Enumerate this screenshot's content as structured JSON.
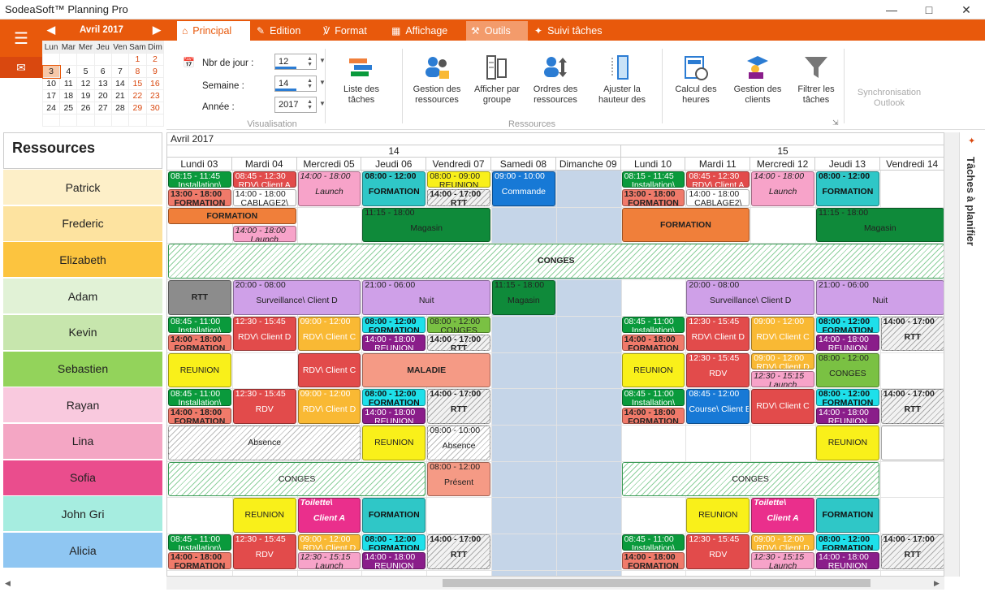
{
  "window": {
    "title": "SodeaSoft™ Planning Pro",
    "minimize_icon": "minimize-icon",
    "maximize_icon": "maximize-icon",
    "close_icon": "close-icon"
  },
  "tabs": [
    {
      "label": "Principal",
      "icon": "home-icon"
    },
    {
      "label": "Edition",
      "icon": "edit-icon"
    },
    {
      "label": "Format",
      "icon": "paint-roller-icon"
    },
    {
      "label": "Affichage",
      "icon": "grid-icon"
    },
    {
      "label": "Outils",
      "icon": "tool-icon"
    },
    {
      "label": "Suivi tâches",
      "icon": "pin-icon"
    }
  ],
  "mini_calendar": {
    "month": "Avril 2017",
    "days": [
      "Lun",
      "Mar",
      "Mer",
      "Jeu",
      "Ven",
      "Sam",
      "Dim"
    ],
    "weeks": [
      [
        "",
        "",
        "",
        "",
        "",
        "1",
        "2"
      ],
      [
        "3",
        "4",
        "5",
        "6",
        "7",
        "8",
        "9"
      ],
      [
        "10",
        "11",
        "12",
        "13",
        "14",
        "15",
        "16"
      ],
      [
        "17",
        "18",
        "19",
        "20",
        "21",
        "22",
        "23"
      ],
      [
        "24",
        "25",
        "26",
        "27",
        "28",
        "29",
        "30"
      ],
      [
        "",
        "",
        "",
        "",
        "",
        "",
        ""
      ]
    ],
    "today": "3"
  },
  "visualisation": {
    "nbjour_label": "Nbr de jour :",
    "nbjour_value": "12",
    "semaine_label": "Semaine :",
    "semaine_value": "14",
    "annee_label": "Année :",
    "annee_value": "2017",
    "caption": "Visualisation"
  },
  "ribbon_buttons": {
    "liste": "Liste des tâches",
    "gestion_res": "Gestion des ressources",
    "afficher": "Afficher par groupe",
    "ordres": "Ordres des ressources",
    "ajuster": "Ajuster la hauteur des",
    "ressources_caption": "Ressources",
    "calcul": "Calcul des heures",
    "gestion_clients": "Gestion des clients",
    "filtrer": "Filtrer les tâches",
    "sync": "Synchronisation Outlook"
  },
  "planning": {
    "resources_title": "Ressources",
    "month": "Avril 2017",
    "week14": "14",
    "week15": "15",
    "days": [
      "Lundi 03",
      "Mardi 04",
      "Mercredi 05",
      "Jeudi 06",
      "Vendredi 07",
      "Samedi 08",
      "Dimanche 09",
      "Lundi 10",
      "Mardi 11",
      "Mercredi 12",
      "Jeudi 13",
      "Vendredi 14"
    ]
  },
  "resources": [
    {
      "name": "Patrick",
      "color": "#fdefc8"
    },
    {
      "name": "Frederic",
      "color": "#fde3a0"
    },
    {
      "name": "Elizabeth",
      "color": "#fcc43f"
    },
    {
      "name": "Adam",
      "color": "#e1f2d6"
    },
    {
      "name": "Kevin",
      "color": "#c7e6ad"
    },
    {
      "name": "Sebastien",
      "color": "#93d35b"
    },
    {
      "name": "Rayan",
      "color": "#f9c9de"
    },
    {
      "name": "Lina",
      "color": "#f4a6c4"
    },
    {
      "name": "Sofia",
      "color": "#ea4d8d"
    },
    {
      "name": "John Gri",
      "color": "#a6ede0"
    },
    {
      "name": "Alicia",
      "color": "#8fc6f2"
    }
  ],
  "events": [
    {
      "r": 0,
      "d": 0,
      "top": 0,
      "h": 0.5,
      "cls": "green",
      "time": "08:15 - 11:45",
      "label": "Installation\\"
    },
    {
      "r": 0,
      "d": 0,
      "top": 0.5,
      "h": 0.5,
      "cls": "salmon b",
      "time": "13:00 - 18:00",
      "label": "FORMATION"
    },
    {
      "r": 0,
      "d": 1,
      "top": 0,
      "h": 0.5,
      "cls": "red",
      "time": "08:45 - 12:30",
      "label": "RDV\\ Client A"
    },
    {
      "r": 0,
      "d": 1,
      "top": 0.5,
      "h": 0.5,
      "cls": "white",
      "time": "14:00 - 18:00",
      "label": "CABLAGE2\\"
    },
    {
      "r": 0,
      "d": 2,
      "top": 0,
      "h": 1,
      "cls": "lightpink it",
      "time": "14:00 - 18:00",
      "label": "Launch"
    },
    {
      "r": 0,
      "d": 3,
      "top": 0,
      "h": 1,
      "cls": "teal b",
      "time": "08:00 - 12:00",
      "label": "FORMATION"
    },
    {
      "r": 0,
      "d": 4,
      "top": 0,
      "h": 0.5,
      "cls": "yellow",
      "time": "08:00 - 09:00",
      "label": "REUNION"
    },
    {
      "r": 0,
      "d": 4,
      "top": 0.5,
      "h": 0.5,
      "cls": "hatchg b",
      "time": "14:00 - 17:00",
      "label": "RTT"
    },
    {
      "r": 0,
      "d": 5,
      "top": 0,
      "h": 1,
      "cls": "blue",
      "time": "09:00 - 10:00",
      "label": "Commande"
    },
    {
      "r": 0,
      "d": 7,
      "top": 0,
      "h": 0.5,
      "cls": "green",
      "time": "08:15 - 11:45",
      "label": "Installation\\"
    },
    {
      "r": 0,
      "d": 7,
      "top": 0.5,
      "h": 0.5,
      "cls": "salmon b",
      "time": "13:00 - 18:00",
      "label": "FORMATION"
    },
    {
      "r": 0,
      "d": 8,
      "top": 0,
      "h": 0.5,
      "cls": "red",
      "time": "08:45 - 12:30",
      "label": "RDV\\ Client A"
    },
    {
      "r": 0,
      "d": 8,
      "top": 0.5,
      "h": 0.5,
      "cls": "white",
      "time": "14:00 - 18:00",
      "label": "CABLAGE2\\"
    },
    {
      "r": 0,
      "d": 9,
      "top": 0,
      "h": 1,
      "cls": "lightpink it",
      "time": "14:00 - 18:00",
      "label": "Launch"
    },
    {
      "r": 0,
      "d": 10,
      "top": 0,
      "h": 1,
      "cls": "teal b",
      "time": "08:00 - 12:00",
      "label": "FORMATION"
    },
    {
      "r": 1,
      "d": 0,
      "w": 2,
      "top": 0,
      "h": 0.5,
      "cls": "orange b",
      "time": "",
      "label": "FORMATION"
    },
    {
      "r": 1,
      "d": 1,
      "top": 0.5,
      "h": 0.5,
      "cls": "lightpink it",
      "time": "14:00 - 18:00",
      "label": "Launch"
    },
    {
      "r": 1,
      "d": 3,
      "w": 2,
      "top": 0,
      "h": 1,
      "cls": "dkgreen",
      "time": "11:15 - 18:00",
      "label": "Magasin"
    },
    {
      "r": 1,
      "d": 7,
      "w": 2,
      "top": 0,
      "h": 1,
      "cls": "orange b",
      "time": "",
      "label": "FORMATION"
    },
    {
      "r": 1,
      "d": 10,
      "w": 2,
      "top": 0,
      "h": 1,
      "cls": "dkgreen",
      "time": "11:15 - 18:00",
      "label": "Magasin"
    },
    {
      "r": 2,
      "d": 0,
      "w": 12,
      "top": 0,
      "h": 1,
      "cls": "hatch b",
      "time": "",
      "label": "CONGES"
    },
    {
      "r": 3,
      "d": 0,
      "top": 0,
      "h": 1,
      "cls": "grey b",
      "time": "",
      "label": "RTT"
    },
    {
      "r": 3,
      "d": 1,
      "w": 2,
      "top": 0,
      "h": 1,
      "cls": "violet",
      "time": "20:00 - 08:00",
      "label": "Surveillance\\ Client D"
    },
    {
      "r": 3,
      "d": 3,
      "w": 2,
      "top": 0,
      "h": 1,
      "cls": "violet",
      "time": "21:00 - 06:00",
      "label": "Nuit"
    },
    {
      "r": 3,
      "d": 5,
      "top": 0,
      "h": 1,
      "cls": "dkgreen",
      "time": "11:15 - 18:00",
      "label": "Magasin"
    },
    {
      "r": 3,
      "d": 8,
      "w": 2,
      "top": 0,
      "h": 1,
      "cls": "violet",
      "time": "20:00 - 08:00",
      "label": "Surveillance\\ Client D"
    },
    {
      "r": 3,
      "d": 10,
      "w": 2,
      "top": 0,
      "h": 1,
      "cls": "violet",
      "time": "21:00 - 06:00",
      "label": "Nuit"
    },
    {
      "r": 4,
      "d": 0,
      "top": 0,
      "h": 0.5,
      "cls": "green",
      "time": "08:45 - 11:00",
      "label": "Installation\\"
    },
    {
      "r": 4,
      "d": 0,
      "top": 0.5,
      "h": 0.5,
      "cls": "salmon b",
      "time": "14:00 - 18:00",
      "label": "FORMATION"
    },
    {
      "r": 4,
      "d": 1,
      "top": 0,
      "h": 1,
      "cls": "red",
      "time": "12:30 - 15:45",
      "label": "RDV\\ Client D"
    },
    {
      "r": 4,
      "d": 2,
      "top": 0,
      "h": 1,
      "cls": "gold",
      "time": "09:00 - 12:00",
      "label": "RDV\\ Client C"
    },
    {
      "r": 4,
      "d": 3,
      "top": 0,
      "h": 0.5,
      "cls": "cyan b",
      "time": "08:00 - 12:00",
      "label": "FORMATION"
    },
    {
      "r": 4,
      "d": 3,
      "top": 0.5,
      "h": 0.5,
      "cls": "purple",
      "time": "14:00 - 18:00",
      "label": "REUNION"
    },
    {
      "r": 4,
      "d": 4,
      "top": 0,
      "h": 0.5,
      "cls": "lime",
      "time": "08:00 - 12:00",
      "label": "CONGES"
    },
    {
      "r": 4,
      "d": 4,
      "top": 0.5,
      "h": 0.5,
      "cls": "hatchg b",
      "time": "14:00 - 17:00",
      "label": "RTT"
    },
    {
      "r": 4,
      "d": 7,
      "top": 0,
      "h": 0.5,
      "cls": "green",
      "time": "08:45 - 11:00",
      "label": "Installation\\"
    },
    {
      "r": 4,
      "d": 7,
      "top": 0.5,
      "h": 0.5,
      "cls": "salmon b",
      "time": "14:00 - 18:00",
      "label": "FORMATION"
    },
    {
      "r": 4,
      "d": 8,
      "top": 0,
      "h": 1,
      "cls": "red",
      "time": "12:30 - 15:45",
      "label": "RDV\\ Client D"
    },
    {
      "r": 4,
      "d": 9,
      "top": 0,
      "h": 1,
      "cls": "gold",
      "time": "09:00 - 12:00",
      "label": "RDV\\ Client C"
    },
    {
      "r": 4,
      "d": 10,
      "top": 0,
      "h": 0.5,
      "cls": "cyan b",
      "time": "08:00 - 12:00",
      "label": "FORMATION"
    },
    {
      "r": 4,
      "d": 10,
      "top": 0.5,
      "h": 0.5,
      "cls": "purple",
      "time": "14:00 - 18:00",
      "label": "REUNION"
    },
    {
      "r": 4,
      "d": 11,
      "top": 0,
      "h": 1,
      "cls": "hatchg b",
      "time": "14:00 - 17:00",
      "label": "RTT"
    },
    {
      "r": 5,
      "d": 0,
      "top": 0,
      "h": 1,
      "cls": "yellow",
      "time": "",
      "label": "REUNION"
    },
    {
      "r": 5,
      "d": 2,
      "top": 0,
      "h": 1,
      "cls": "red",
      "time": "",
      "label": "RDV\\ Client C"
    },
    {
      "r": 5,
      "d": 3,
      "w": 2,
      "top": 0,
      "h": 1,
      "cls": "ltsalmon b",
      "time": "",
      "label": "MALADIE"
    },
    {
      "r": 5,
      "d": 7,
      "top": 0,
      "h": 1,
      "cls": "yellow",
      "time": "",
      "label": "REUNION"
    },
    {
      "r": 5,
      "d": 8,
      "top": 0,
      "h": 1,
      "cls": "red",
      "time": "12:30 - 15:45",
      "label": "RDV"
    },
    {
      "r": 5,
      "d": 9,
      "top": 0,
      "h": 0.5,
      "cls": "gold",
      "time": "09:00 - 12:00",
      "label": "RDV\\ Client D"
    },
    {
      "r": 5,
      "d": 9,
      "top": 0.5,
      "h": 0.5,
      "cls": "lightpink it",
      "time": "12:30 - 15:15",
      "label": "Launch"
    },
    {
      "r": 5,
      "d": 10,
      "top": 0,
      "h": 1,
      "cls": "lime",
      "time": "08:00 - 12:00",
      "label": "CONGES"
    },
    {
      "r": 6,
      "d": 0,
      "top": 0,
      "h": 0.5,
      "cls": "green",
      "time": "08:45 - 11:00",
      "label": "Installation\\"
    },
    {
      "r": 6,
      "d": 0,
      "top": 0.5,
      "h": 0.5,
      "cls": "salmon b",
      "time": "14:00 - 18:00",
      "label": "FORMATION"
    },
    {
      "r": 6,
      "d": 1,
      "top": 0,
      "h": 1,
      "cls": "red",
      "time": "12:30 - 15:45",
      "label": "RDV"
    },
    {
      "r": 6,
      "d": 2,
      "top": 0,
      "h": 1,
      "cls": "gold",
      "time": "09:00 - 12:00",
      "label": "RDV\\ Client D"
    },
    {
      "r": 6,
      "d": 3,
      "top": 0,
      "h": 0.5,
      "cls": "cyan b",
      "time": "08:00 - 12:00",
      "label": "FORMATION"
    },
    {
      "r": 6,
      "d": 3,
      "top": 0.5,
      "h": 0.5,
      "cls": "purple",
      "time": "14:00 - 18:00",
      "label": "REUNION"
    },
    {
      "r": 6,
      "d": 4,
      "top": 0,
      "h": 1,
      "cls": "hatchg b",
      "time": "14:00 - 17:00",
      "label": "RTT"
    },
    {
      "r": 6,
      "d": 7,
      "top": 0,
      "h": 0.5,
      "cls": "green",
      "time": "08:45 - 11:00",
      "label": "Installation\\"
    },
    {
      "r": 6,
      "d": 7,
      "top": 0.5,
      "h": 0.5,
      "cls": "salmon b",
      "time": "14:00 - 18:00",
      "label": "FORMATION"
    },
    {
      "r": 6,
      "d": 8,
      "top": 0,
      "h": 1,
      "cls": "blue",
      "time": "08:45 - 12:00",
      "label": "Course\\ Client B"
    },
    {
      "r": 6,
      "d": 9,
      "top": 0,
      "h": 1,
      "cls": "red",
      "time": "",
      "label": "RDV\\ Client C"
    },
    {
      "r": 6,
      "d": 10,
      "top": 0,
      "h": 0.5,
      "cls": "cyan b",
      "time": "08:00 - 12:00",
      "label": "FORMATION"
    },
    {
      "r": 6,
      "d": 10,
      "top": 0.5,
      "h": 0.5,
      "cls": "purple",
      "time": "14:00 - 18:00",
      "label": "REUNION"
    },
    {
      "r": 6,
      "d": 11,
      "top": 0,
      "h": 1,
      "cls": "hatchg b",
      "time": "14:00 - 17:00",
      "label": "RTT"
    },
    {
      "r": 7,
      "d": 0,
      "w": 3,
      "top": 0,
      "h": 1,
      "cls": "hatchw",
      "time": "",
      "label": "Absence"
    },
    {
      "r": 7,
      "d": 3,
      "top": 0,
      "h": 1,
      "cls": "yellow",
      "time": "",
      "label": "REUNION"
    },
    {
      "r": 7,
      "d": 4,
      "top": 0,
      "h": 1,
      "cls": "hatchw",
      "time": "09:00 - 10:00",
      "label": "Absence"
    },
    {
      "r": 7,
      "d": 10,
      "top": 0,
      "h": 1,
      "cls": "yellow",
      "time": "",
      "label": "REUNION"
    },
    {
      "r": 7,
      "d": 11,
      "top": 0,
      "h": 1,
      "cls": "white",
      "time": "",
      "label": ""
    },
    {
      "r": 8,
      "d": 0,
      "w": 4,
      "top": 0,
      "h": 1,
      "cls": "hatch",
      "time": "",
      "label": "CONGES"
    },
    {
      "r": 8,
      "d": 4,
      "top": 0,
      "h": 1,
      "cls": "ltsalmon",
      "time": "08:00 - 12:00",
      "label": "Présent"
    },
    {
      "r": 8,
      "d": 7,
      "w": 4,
      "top": 0,
      "h": 1,
      "cls": "hatch",
      "time": "",
      "label": "CONGES"
    },
    {
      "r": 9,
      "d": 1,
      "top": 0,
      "h": 1,
      "cls": "yellow",
      "time": "",
      "label": "REUNION"
    },
    {
      "r": 9,
      "d": 2,
      "top": 0,
      "h": 1,
      "cls": "magenta it b",
      "time": "Toilette\\",
      "label": "Client A"
    },
    {
      "r": 9,
      "d": 3,
      "top": 0,
      "h": 1,
      "cls": "teal b",
      "time": "",
      "label": "FORMATION"
    },
    {
      "r": 9,
      "d": 8,
      "top": 0,
      "h": 1,
      "cls": "yellow",
      "time": "",
      "label": "REUNION"
    },
    {
      "r": 9,
      "d": 9,
      "top": 0,
      "h": 1,
      "cls": "magenta it b",
      "time": "Toilette\\",
      "label": "Client A"
    },
    {
      "r": 9,
      "d": 10,
      "top": 0,
      "h": 1,
      "cls": "teal b",
      "time": "",
      "label": "FORMATION"
    },
    {
      "r": 10,
      "d": 0,
      "top": 0,
      "h": 0.5,
      "cls": "green",
      "time": "08:45 - 11:00",
      "label": "Installation\\"
    },
    {
      "r": 10,
      "d": 0,
      "top": 0.5,
      "h": 0.5,
      "cls": "salmon b",
      "time": "14:00 - 18:00",
      "label": "FORMATION"
    },
    {
      "r": 10,
      "d": 1,
      "top": 0,
      "h": 1,
      "cls": "red",
      "time": "12:30 - 15:45",
      "label": "RDV"
    },
    {
      "r": 10,
      "d": 2,
      "top": 0,
      "h": 0.5,
      "cls": "gold",
      "time": "09:00 - 12:00",
      "label": "RDV\\ Client D"
    },
    {
      "r": 10,
      "d": 2,
      "top": 0.5,
      "h": 0.5,
      "cls": "lightpink it",
      "time": "12:30 - 15:15",
      "label": "Launch"
    },
    {
      "r": 10,
      "d": 3,
      "top": 0,
      "h": 0.5,
      "cls": "cyan b",
      "time": "08:00 - 12:00",
      "label": "FORMATION"
    },
    {
      "r": 10,
      "d": 3,
      "top": 0.5,
      "h": 0.5,
      "cls": "purple",
      "time": "14:00 - 18:00",
      "label": "REUNION"
    },
    {
      "r": 10,
      "d": 4,
      "top": 0,
      "h": 1,
      "cls": "hatchg b",
      "time": "14:00 - 17:00",
      "label": "RTT"
    },
    {
      "r": 10,
      "d": 7,
      "top": 0,
      "h": 0.5,
      "cls": "green",
      "time": "08:45 - 11:00",
      "label": "Installation\\"
    },
    {
      "r": 10,
      "d": 7,
      "top": 0.5,
      "h": 0.5,
      "cls": "salmon b",
      "time": "14:00 - 18:00",
      "label": "FORMATION"
    },
    {
      "r": 10,
      "d": 8,
      "top": 0,
      "h": 1,
      "cls": "red",
      "time": "12:30 - 15:45",
      "label": "RDV"
    },
    {
      "r": 10,
      "d": 9,
      "top": 0,
      "h": 0.5,
      "cls": "gold",
      "time": "09:00 - 12:00",
      "label": "RDV\\ Client D"
    },
    {
      "r": 10,
      "d": 9,
      "top": 0.5,
      "h": 0.5,
      "cls": "lightpink it",
      "time": "12:30 - 15:15",
      "label": "Launch"
    },
    {
      "r": 10,
      "d": 10,
      "top": 0,
      "h": 0.5,
      "cls": "cyan b",
      "time": "08:00 - 12:00",
      "label": "FORMATION"
    },
    {
      "r": 10,
      "d": 10,
      "top": 0.5,
      "h": 0.5,
      "cls": "purple",
      "time": "14:00 - 18:00",
      "label": "REUNION"
    },
    {
      "r": 10,
      "d": 11,
      "top": 0,
      "h": 1,
      "cls": "hatchg b",
      "time": "14:00 - 17:00",
      "label": "RTT"
    }
  ],
  "right_panel": {
    "label": "Tâches à planifier"
  }
}
